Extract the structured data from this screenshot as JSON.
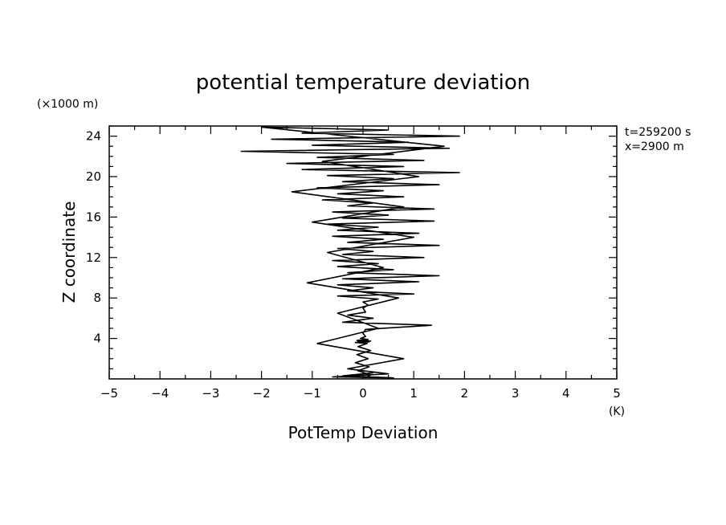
{
  "chart_data": {
    "type": "line",
    "title": "potential temperature deviation",
    "xlabel": "PotTemp Deviation",
    "ylabel": "Z coordinate",
    "x_unit": "(K)",
    "y_unit": "(×1000 m)",
    "xlim": [
      -5,
      5
    ],
    "ylim": [
      0,
      25
    ],
    "x_ticks": [
      "−5",
      "−4",
      "−3",
      "−2",
      "−1",
      "0",
      "1",
      "2",
      "3",
      "4",
      "5"
    ],
    "y_ticks": [
      "4",
      "8",
      "12",
      "16",
      "20",
      "24"
    ],
    "grid": false,
    "annotations": [
      "t=259200 s",
      "x=2900 m"
    ],
    "series": [
      {
        "x": [
          0.05,
          0.15,
          -0.1,
          0.12,
          -0.15,
          0.1,
          -0.12,
          0.15,
          -0.1,
          0.08,
          -0.15,
          0.12,
          -0.1,
          0.15,
          -0.12,
          0.1,
          -0.05,
          0.05,
          0.0,
          0.05,
          1.35,
          -0.4,
          0.2,
          -0.3,
          0.05,
          0.0,
          0.1,
          0.0,
          0.3,
          -0.5,
          1.0,
          -0.3,
          0.2,
          -0.5,
          1.1,
          -0.4,
          1.5,
          -0.3,
          0.6,
          -0.5,
          0.3,
          -0.6,
          1.2,
          -0.4,
          0.2,
          -0.5,
          1.5,
          -0.3,
          0.4,
          -0.6,
          1.1,
          -0.5,
          0.3,
          -0.7,
          1.4,
          -0.4,
          0.5,
          -0.6,
          1.4,
          -0.3,
          0.2,
          -0.8,
          0.8,
          -0.5,
          0.4,
          -0.9,
          1.5,
          -0.4,
          0.6,
          -0.7,
          1.9,
          -1.2,
          0.8,
          -1.5,
          1.2,
          -0.9,
          0.6,
          -2.4,
          1.7,
          -1.0,
          0.9,
          -1.8,
          1.9,
          -1.2,
          0.5,
          -2.0,
          1.6,
          -0.8,
          1.1,
          -1.4,
          0.8,
          -1.0,
          1.0,
          -0.7,
          0.4,
          -1.1,
          0.7,
          -0.5,
          0.3,
          -0.9,
          0.8,
          -0.3,
          0.5,
          -0.6,
          0.6,
          -0.4,
          0.2
        ],
        "y": [
          0.1,
          0.4,
          0.8,
          1.2,
          1.6,
          2.0,
          2.4,
          2.8,
          3.2,
          3.5,
          3.6,
          3.65,
          3.7,
          3.75,
          3.8,
          3.9,
          4.0,
          4.2,
          4.5,
          4.9,
          5.3,
          5.6,
          6.0,
          6.3,
          6.6,
          7.0,
          7.3,
          7.6,
          7.9,
          8.2,
          8.4,
          8.7,
          9.0,
          9.3,
          9.6,
          9.9,
          10.2,
          10.5,
          10.8,
          11.1,
          11.4,
          11.7,
          12.0,
          12.3,
          12.6,
          12.9,
          13.2,
          13.5,
          13.8,
          14.1,
          14.4,
          14.7,
          15.0,
          15.3,
          15.6,
          15.9,
          16.2,
          16.5,
          16.8,
          17.1,
          17.4,
          17.7,
          18.0,
          18.3,
          18.6,
          18.9,
          19.2,
          19.5,
          19.8,
          20.1,
          20.4,
          20.7,
          21.0,
          21.3,
          21.6,
          21.9,
          22.2,
          22.5,
          22.8,
          23.1,
          23.4,
          23.7,
          24.0,
          24.3,
          24.6,
          24.9,
          23.0,
          21.5,
          20.0,
          18.5,
          17.0,
          15.5,
          14.0,
          12.5,
          11.0,
          9.5,
          8.0,
          6.5,
          5.0,
          3.5,
          2.0,
          1.0,
          0.5,
          0.2,
          0.1,
          0.3,
          0.6
        ]
      }
    ]
  }
}
